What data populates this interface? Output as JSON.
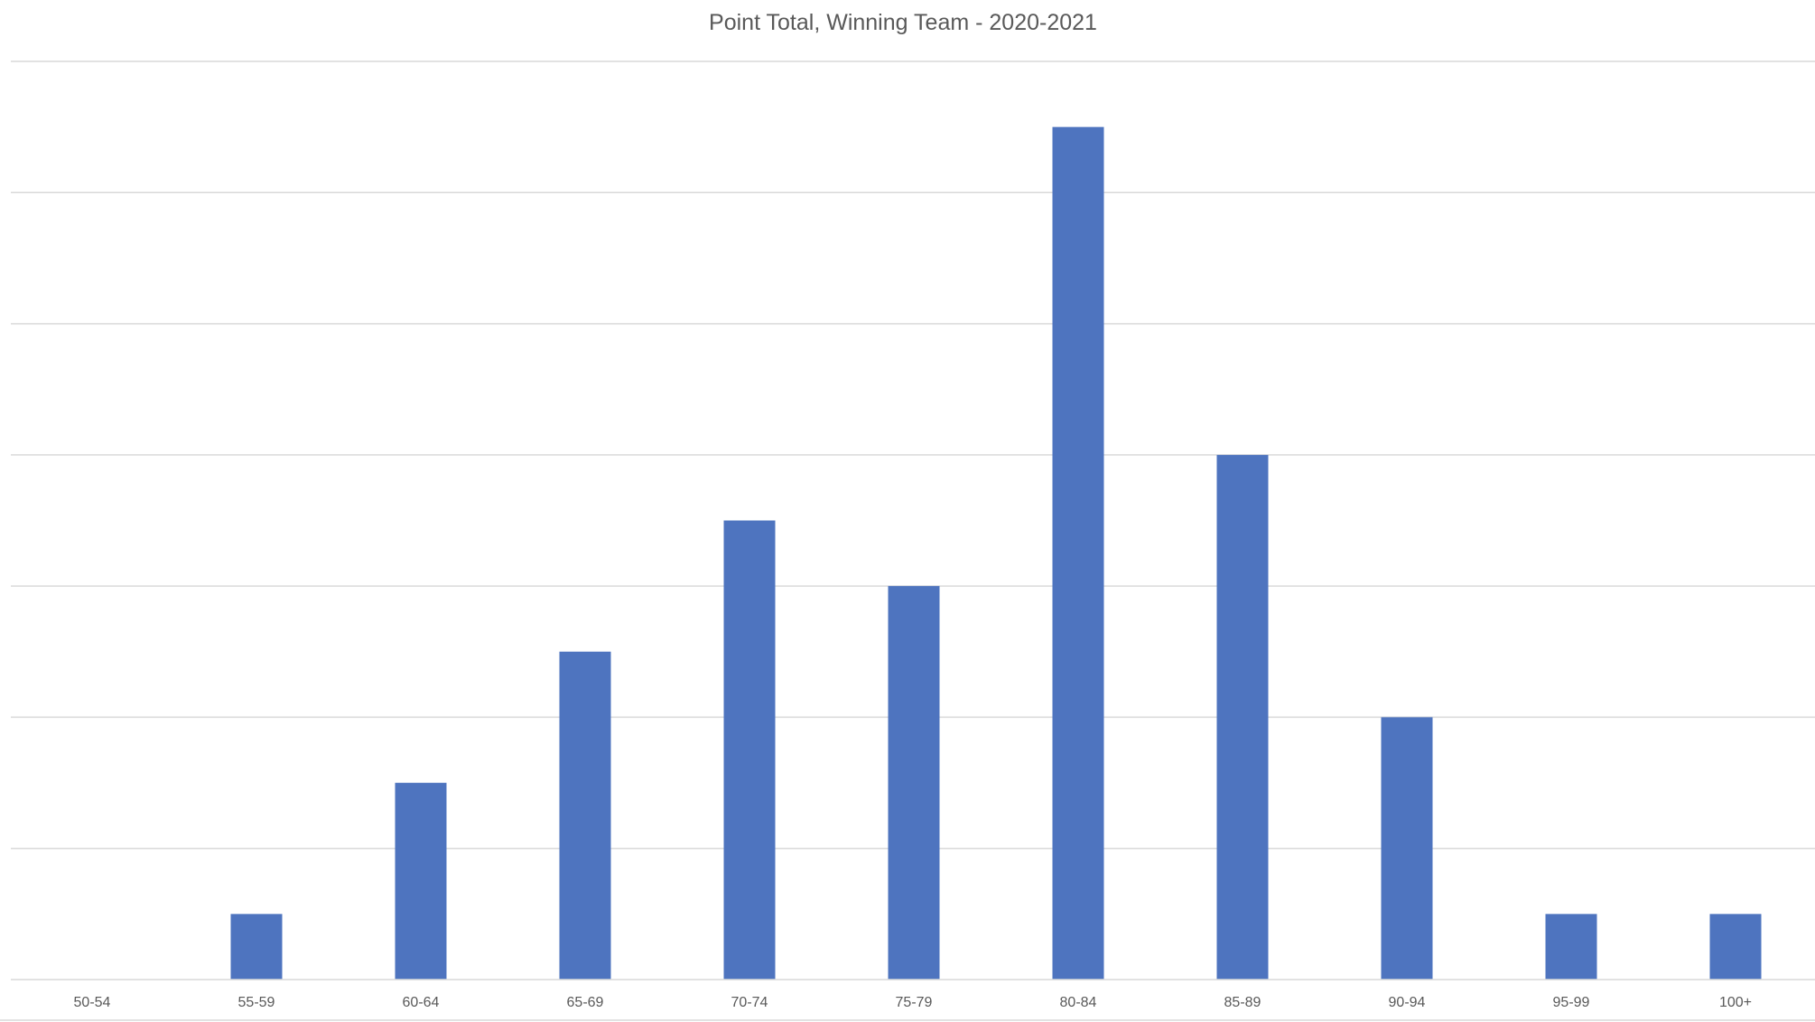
{
  "chart_data": {
    "type": "bar",
    "title": "Point Total, Winning Team - 2020-2021",
    "xlabel": "",
    "ylabel": "",
    "categories": [
      "50-54",
      "55-59",
      "60-64",
      "65-69",
      "70-74",
      "75-79",
      "80-84",
      "85-89",
      "90-94",
      "95-99",
      "100+"
    ],
    "values": [
      0,
      1,
      3,
      5,
      7,
      6,
      13,
      8,
      4,
      1,
      1
    ],
    "ylim": [
      0,
      14
    ],
    "y_gridline_step": 2,
    "y_tick_labels_shown": false,
    "grid": true,
    "legend": "none",
    "bar_color": "#4e74bf"
  }
}
